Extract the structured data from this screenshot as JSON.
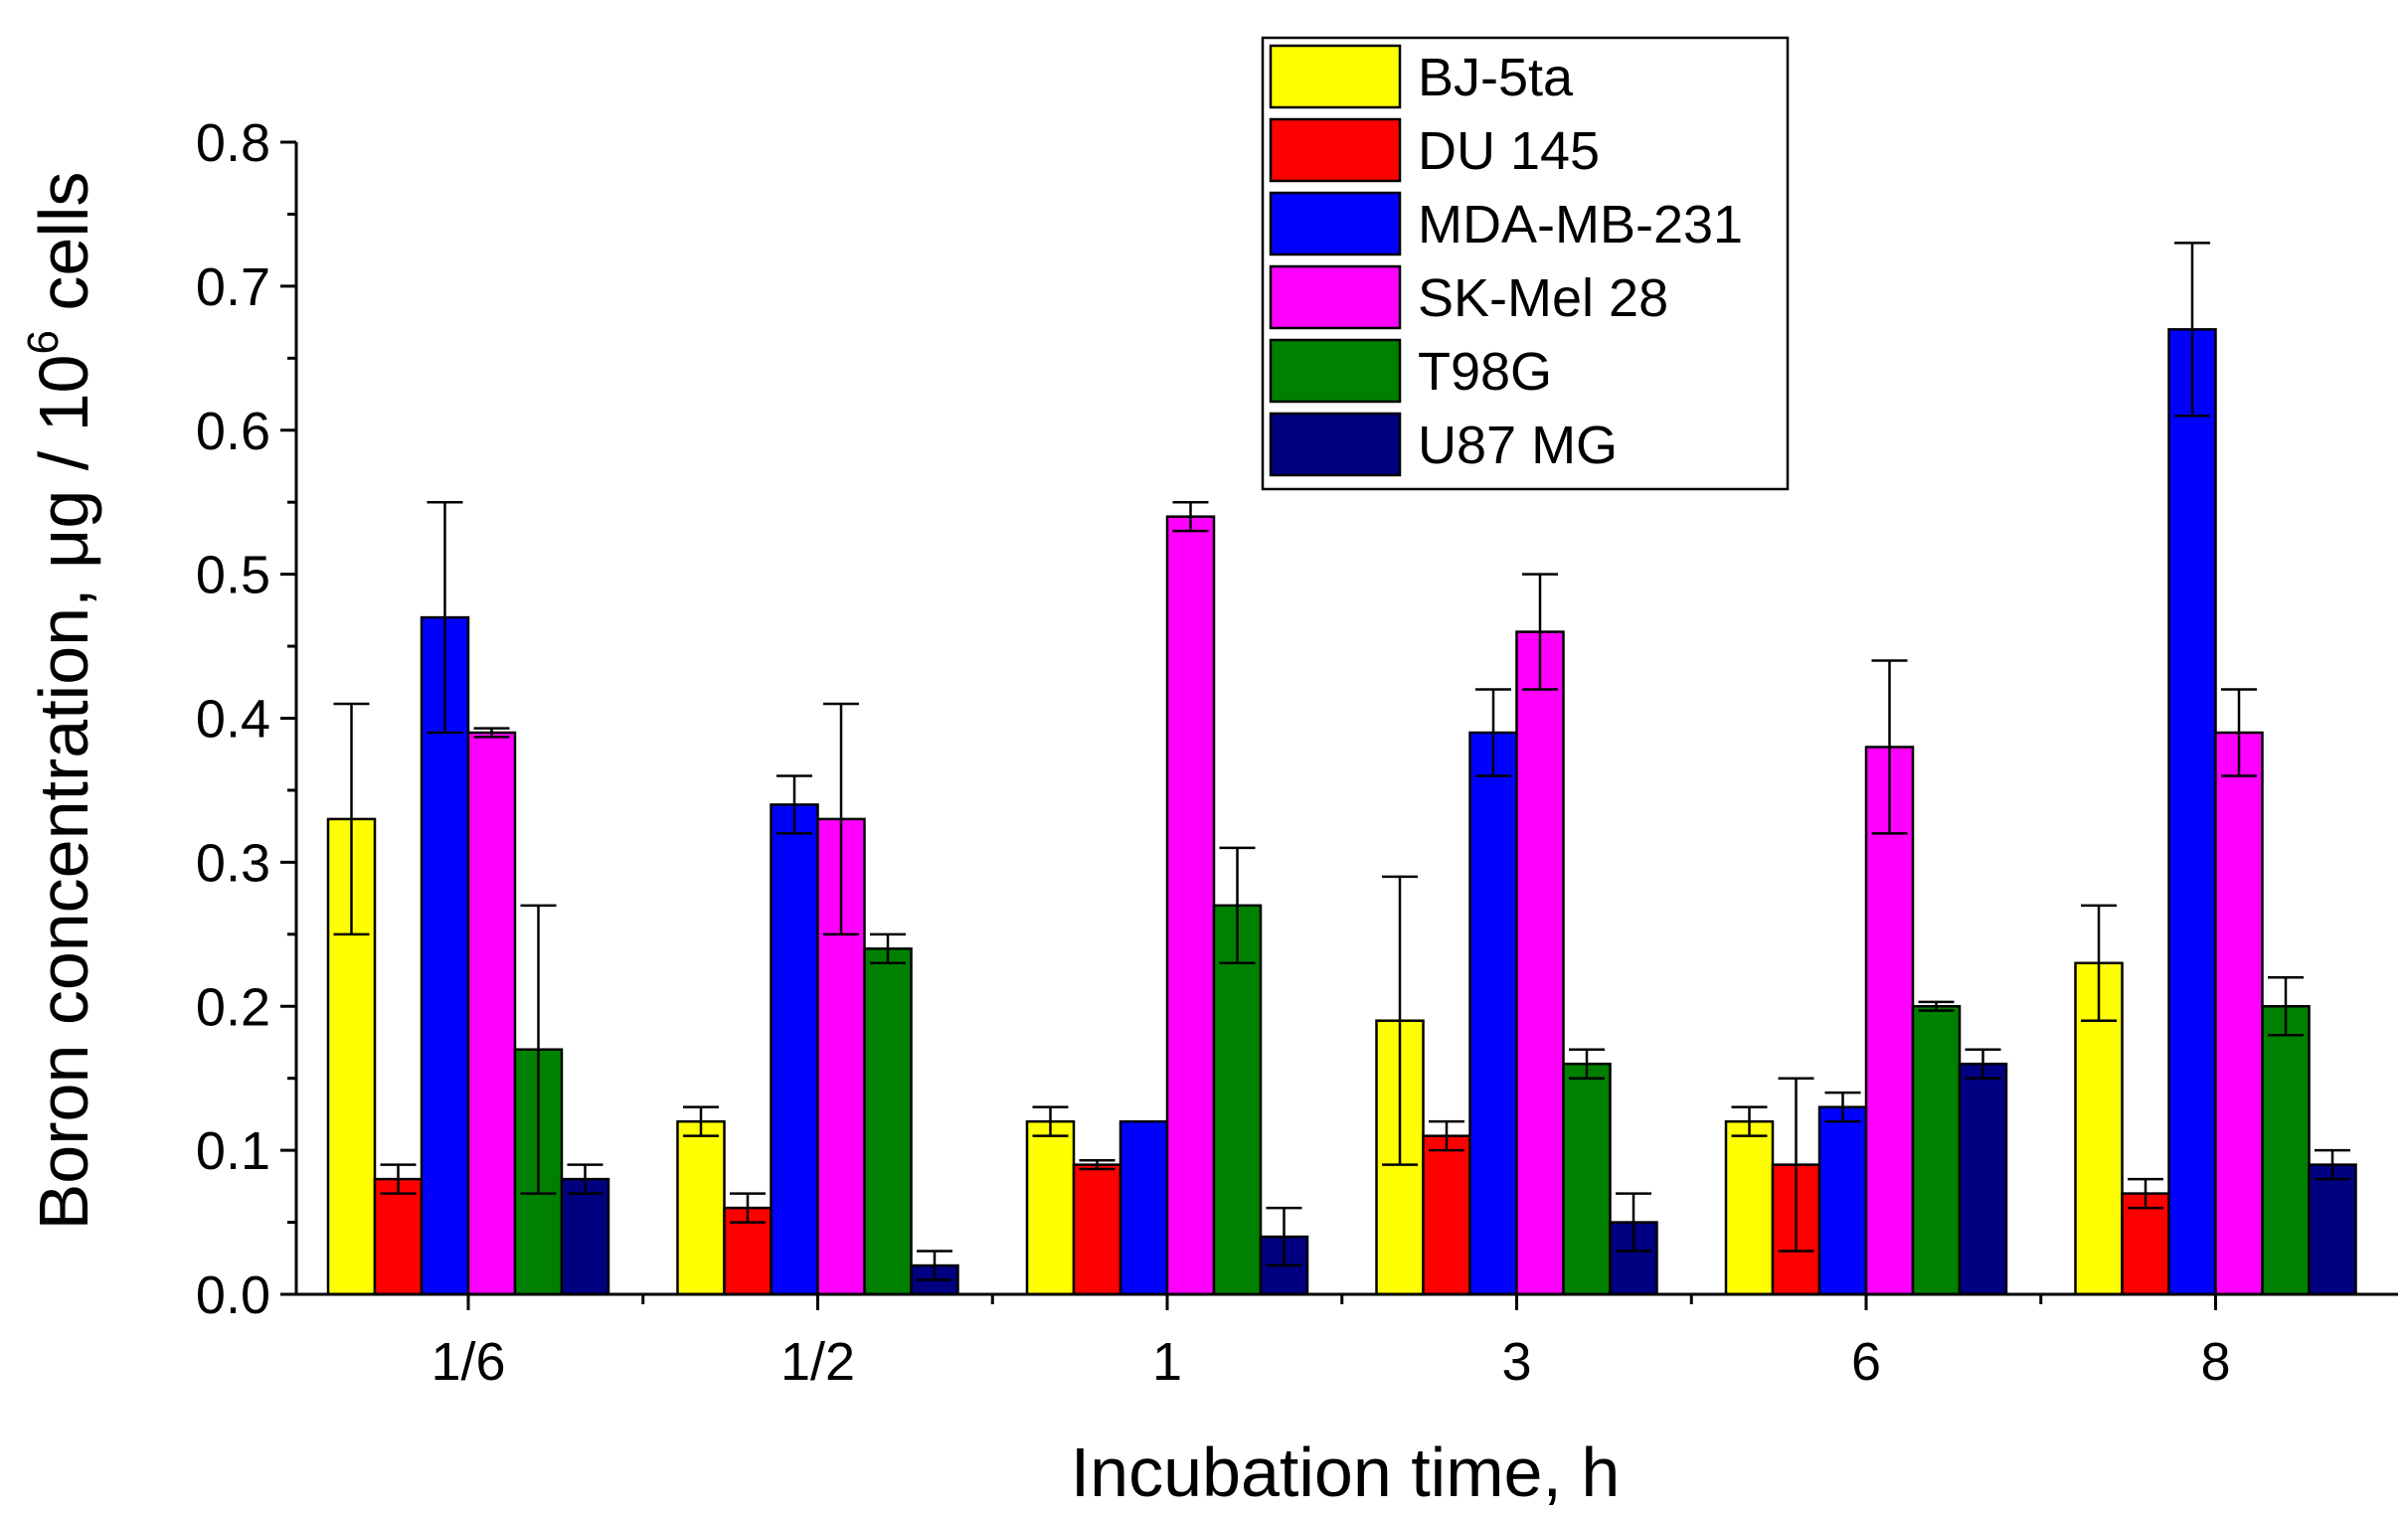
{
  "chart_data": {
    "type": "bar",
    "title": "",
    "xlabel": "Incubation time, h",
    "ylabel": {
      "main": "Boron concentration, μg / 10",
      "superscript": "6",
      "suffix": " cells"
    },
    "ylim": [
      0,
      0.8
    ],
    "yticks": [
      "0.0",
      "0.1",
      "0.2",
      "0.3",
      "0.4",
      "0.5",
      "0.6",
      "0.7",
      "0.8"
    ],
    "categories": [
      "1/6",
      "1/2",
      "1",
      "3",
      "6",
      "8"
    ],
    "legend_position": "top-right",
    "grid": false,
    "series": [
      {
        "name": "BJ-5ta",
        "color": "#ffff00",
        "values": [
          0.33,
          0.12,
          0.12,
          0.19,
          0.12,
          0.23
        ],
        "errors": [
          0.08,
          0.01,
          0.01,
          0.1,
          0.01,
          0.04
        ]
      },
      {
        "name": "DU 145",
        "color": "#ff0000",
        "values": [
          0.08,
          0.06,
          0.09,
          0.11,
          0.09,
          0.07
        ],
        "errors": [
          0.01,
          0.01,
          0.003,
          0.01,
          0.06,
          0.01
        ]
      },
      {
        "name": "MDA-MB-231",
        "color": "#0000ff",
        "values": [
          0.47,
          0.34,
          0.12,
          0.39,
          0.13,
          0.67
        ],
        "errors": [
          0.08,
          0.02,
          0.0,
          0.03,
          0.01,
          0.06
        ]
      },
      {
        "name": "SK-Mel 28",
        "color": "#ff00ff",
        "values": [
          0.39,
          0.33,
          0.54,
          0.46,
          0.38,
          0.39
        ],
        "errors": [
          0.003,
          0.08,
          0.01,
          0.04,
          0.06,
          0.03
        ]
      },
      {
        "name": "T98G",
        "color": "#008000",
        "values": [
          0.17,
          0.24,
          0.27,
          0.16,
          0.2,
          0.2
        ],
        "errors": [
          0.1,
          0.01,
          0.04,
          0.01,
          0.003,
          0.02
        ]
      },
      {
        "name": "U87 MG",
        "color": "#000080",
        "values": [
          0.08,
          0.02,
          0.04,
          0.05,
          0.16,
          0.09
        ],
        "errors": [
          0.01,
          0.01,
          0.02,
          0.02,
          0.01,
          0.01
        ]
      }
    ]
  }
}
